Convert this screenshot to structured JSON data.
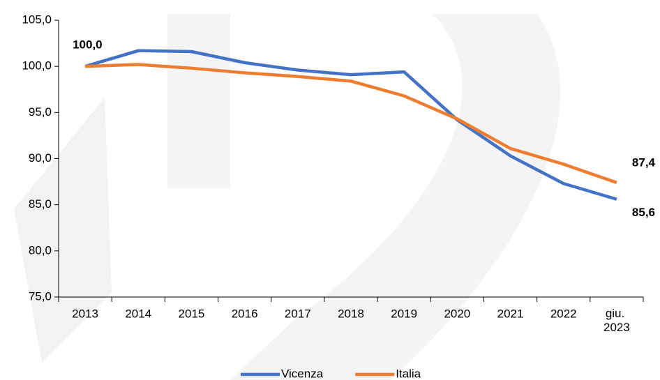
{
  "chart_data": {
    "type": "line",
    "categories": [
      "2013",
      "2014",
      "2015",
      "2016",
      "2017",
      "2018",
      "2019",
      "2020",
      "2021",
      "2022",
      "giu. 2023"
    ],
    "series": [
      {
        "name": "Vicenza",
        "color": "#4472c4",
        "values": [
          100.0,
          101.7,
          101.6,
          100.4,
          99.6,
          99.1,
          99.4,
          94.2,
          90.3,
          87.3,
          85.6
        ],
        "value_labels": [
          "100,0",
          null,
          null,
          null,
          null,
          null,
          null,
          null,
          null,
          null,
          "85,6"
        ]
      },
      {
        "name": "Italia",
        "color": "#ed7d31",
        "values": [
          100.0,
          100.2,
          99.8,
          99.3,
          98.9,
          98.4,
          96.8,
          94.3,
          91.1,
          89.4,
          87.4
        ],
        "value_labels": [
          null,
          null,
          null,
          null,
          null,
          null,
          null,
          null,
          null,
          null,
          "87,4"
        ]
      }
    ],
    "ylim": [
      75,
      105
    ],
    "yticks": [
      {
        "value": 75,
        "label": "75,0"
      },
      {
        "value": 80,
        "label": "80,0"
      },
      {
        "value": 85,
        "label": "85,0"
      },
      {
        "value": 90,
        "label": "90,0"
      },
      {
        "value": 95,
        "label": "95,0"
      },
      {
        "value": 100,
        "label": "100,0"
      },
      {
        "value": 105,
        "label": "105,0"
      }
    ],
    "legend": "bottom"
  }
}
